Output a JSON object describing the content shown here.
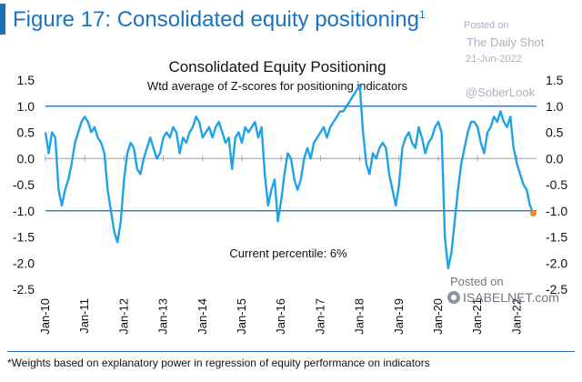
{
  "figure": {
    "title": "Figure 17: Consolidated equity positioning",
    "title_superscript": "1",
    "footnote": "*Weights based on explanatory power in regression of equity performance on indicators"
  },
  "watermarks": {
    "posted_on": "Posted on",
    "source": "The Daily Shot",
    "date": "21-Jun-2022",
    "handle": "@SoberLook",
    "posted_on_2": "Posted on",
    "site": "ISABELNET.com"
  },
  "chart_data": {
    "type": "line",
    "title": "Consolidated Equity Positioning",
    "subtitle": "Wtd average of Z-scores for positioning indicators",
    "annotation": "Current percentile: 6%",
    "xlabel": "",
    "ylabel": "",
    "ylim": [
      -2.5,
      1.5
    ],
    "yticks": [
      1.5,
      1.0,
      0.5,
      0.0,
      -0.5,
      -1.0,
      -1.5,
      -2.0,
      -2.5
    ],
    "ytick_labels": [
      "1.5",
      "1.0",
      "0.5",
      "0.0",
      "-0.5",
      "-1.0",
      "-1.5",
      "-2.0",
      "-2.5"
    ],
    "xticks": [
      "Jan-10",
      "Jan-11",
      "Jan-12",
      "Jan-13",
      "Jan-14",
      "Jan-15",
      "Jan-16",
      "Jan-17",
      "Jan-18",
      "Jan-19",
      "Jan-20",
      "Jan-21",
      "Jan-22"
    ],
    "xlim": [
      "2010-01",
      "2022-07"
    ],
    "reference_lines": [
      1.0,
      -1.0
    ],
    "line_color": "#1fa3e6",
    "reference_line_color": "#1f5fa8",
    "marker_color": "#f08c2e",
    "grid": false,
    "legend": "none",
    "series": [
      {
        "x": [
          "2010-01",
          "2010-02",
          "2010-03",
          "2010-04",
          "2010-05",
          "2010-06",
          "2010-07",
          "2010-08",
          "2010-09",
          "2010-10",
          "2010-11",
          "2010-12",
          "2011-01",
          "2011-02",
          "2011-03",
          "2011-04",
          "2011-05",
          "2011-06",
          "2011-07",
          "2011-08",
          "2011-09",
          "2011-10",
          "2011-11",
          "2011-12",
          "2012-01",
          "2012-02",
          "2012-03",
          "2012-04",
          "2012-05",
          "2012-06",
          "2012-07",
          "2012-08",
          "2012-09",
          "2012-10",
          "2012-11",
          "2012-12",
          "2013-01",
          "2013-02",
          "2013-03",
          "2013-04",
          "2013-05",
          "2013-06",
          "2013-07",
          "2013-08",
          "2013-09",
          "2013-10",
          "2013-11",
          "2013-12",
          "2014-01",
          "2014-02",
          "2014-03",
          "2014-04",
          "2014-05",
          "2014-06",
          "2014-07",
          "2014-08",
          "2014-09",
          "2014-10",
          "2014-11",
          "2014-12",
          "2015-01",
          "2015-02",
          "2015-03",
          "2015-04",
          "2015-05",
          "2015-06",
          "2015-07",
          "2015-08",
          "2015-09",
          "2015-10",
          "2015-11",
          "2015-12",
          "2016-01",
          "2016-02",
          "2016-03",
          "2016-04",
          "2016-05",
          "2016-06",
          "2016-07",
          "2016-08",
          "2016-09",
          "2016-10",
          "2016-11",
          "2016-12",
          "2017-01",
          "2017-02",
          "2017-03",
          "2017-04",
          "2017-05",
          "2017-06",
          "2017-07",
          "2017-08",
          "2017-09",
          "2017-10",
          "2017-11",
          "2017-12",
          "2018-01",
          "2018-02",
          "2018-03",
          "2018-04",
          "2018-05",
          "2018-06",
          "2018-07",
          "2018-08",
          "2018-09",
          "2018-10",
          "2018-11",
          "2018-12",
          "2019-01",
          "2019-02",
          "2019-03",
          "2019-04",
          "2019-05",
          "2019-06",
          "2019-07",
          "2019-08",
          "2019-09",
          "2019-10",
          "2019-11",
          "2019-12",
          "2020-01",
          "2020-02",
          "2020-03",
          "2020-04",
          "2020-05",
          "2020-06",
          "2020-07",
          "2020-08",
          "2020-09",
          "2020-10",
          "2020-11",
          "2020-12",
          "2021-01",
          "2021-02",
          "2021-03",
          "2021-04",
          "2021-05",
          "2021-06",
          "2021-07",
          "2021-08",
          "2021-09",
          "2021-10",
          "2021-11",
          "2021-12",
          "2022-01",
          "2022-02",
          "2022-03",
          "2022-04",
          "2022-05",
          "2022-06"
        ],
        "values": [
          0.5,
          0.1,
          0.5,
          0.4,
          -0.6,
          -0.9,
          -0.6,
          -0.4,
          -0.1,
          0.3,
          0.5,
          0.7,
          0.8,
          0.7,
          0.5,
          0.6,
          0.4,
          0.3,
          0.1,
          -0.6,
          -1.0,
          -1.4,
          -1.6,
          -1.2,
          -0.4,
          0.1,
          0.3,
          0.2,
          -0.2,
          -0.3,
          0.0,
          0.2,
          0.4,
          0.2,
          0.0,
          0.1,
          0.4,
          0.5,
          0.4,
          0.6,
          0.5,
          0.1,
          0.4,
          0.3,
          0.5,
          0.6,
          0.8,
          0.7,
          0.4,
          0.5,
          0.6,
          0.4,
          0.6,
          0.7,
          0.5,
          0.3,
          0.4,
          -0.2,
          0.4,
          0.5,
          0.3,
          0.6,
          0.5,
          0.6,
          0.7,
          0.4,
          0.6,
          -0.3,
          -0.9,
          -0.6,
          -0.4,
          -1.2,
          -0.8,
          -0.3,
          0.1,
          0.0,
          -0.4,
          -0.6,
          -0.4,
          0.0,
          0.2,
          0.0,
          0.3,
          0.4,
          0.5,
          0.6,
          0.4,
          0.6,
          0.7,
          0.8,
          0.9,
          0.9,
          1.0,
          1.1,
          1.2,
          1.3,
          1.4,
          0.5,
          -0.1,
          -0.3,
          0.1,
          0.0,
          0.2,
          0.3,
          0.2,
          -0.3,
          -0.6,
          -0.9,
          -0.5,
          0.2,
          0.4,
          0.5,
          0.3,
          0.2,
          0.6,
          0.4,
          0.1,
          0.3,
          0.4,
          0.6,
          0.7,
          0.5,
          -1.5,
          -2.1,
          -1.8,
          -1.2,
          -0.6,
          -0.1,
          0.2,
          0.5,
          0.7,
          0.7,
          0.6,
          0.3,
          0.1,
          0.5,
          0.6,
          0.8,
          0.7,
          0.9,
          0.7,
          0.6,
          0.8,
          0.2,
          -0.1,
          -0.3,
          -0.5,
          -0.6,
          -0.9,
          -1.05
        ]
      }
    ],
    "current_point": {
      "x": "2022-06",
      "y": -1.05
    }
  }
}
